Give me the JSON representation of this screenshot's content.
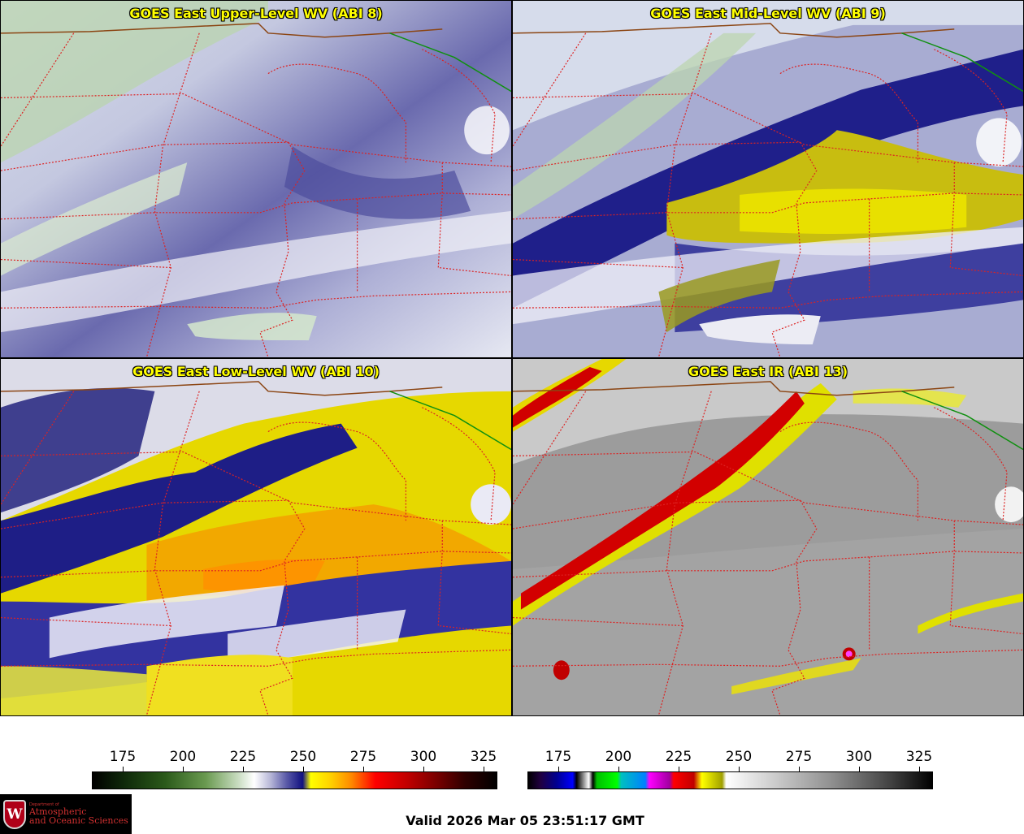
{
  "panels": [
    {
      "title": "GOES East Upper-Level WV (ABI 8)",
      "palette": "wv-upper"
    },
    {
      "title": "GOES East Mid-Level WV (ABI 9)",
      "palette": "wv-mid"
    },
    {
      "title": "GOES East Low-Level WV (ABI 10)",
      "palette": "wv-low"
    },
    {
      "title": "GOES East IR (ABI 13)",
      "palette": "ir"
    }
  ],
  "colorbar_wv": {
    "ticks": [
      "175",
      "200",
      "225",
      "250",
      "275",
      "300",
      "325"
    ]
  },
  "colorbar_ir": {
    "ticks": [
      "175",
      "200",
      "225",
      "250",
      "275",
      "300",
      "325"
    ]
  },
  "logo": {
    "dept": "Department of",
    "line1": "Atmospheric",
    "line2": "and Oceanic Sciences",
    "crest_letter": "W"
  },
  "valid_time": "Valid 2026 Mar 05 23:51:17 GMT",
  "colors": {
    "title_text": "#ffff00",
    "state_border": "#dd2222",
    "country_border": "#8b4513",
    "canada_border": "#109010"
  }
}
